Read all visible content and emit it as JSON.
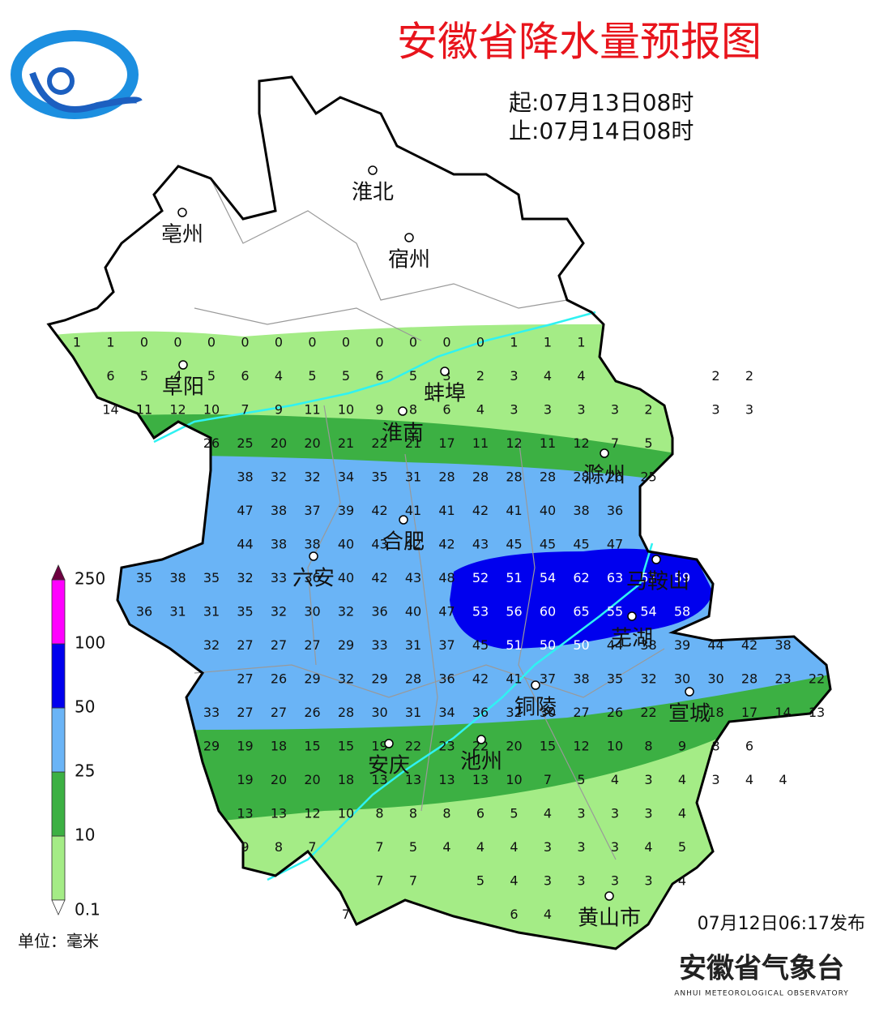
{
  "header": {
    "title": "安徽省降水量预报图",
    "start": "起:07月13日08时",
    "end": "止:07月14日08时"
  },
  "cities": [
    "淮北",
    "亳州",
    "宿州",
    "阜阳",
    "蚌埠",
    "淮南",
    "滁州",
    "合肥",
    "六安",
    "马鞍山",
    "芜湖",
    "铜陵",
    "宣城",
    "安庆",
    "池州",
    "黄山市"
  ],
  "grid": {
    "rows": [
      [
        1,
        1,
        0,
        0,
        0,
        0,
        0,
        0,
        0,
        0,
        0,
        0,
        0,
        1,
        1,
        1,
        null,
        null,
        null,
        null,
        null,
        null,
        null
      ],
      [
        null,
        6,
        5,
        4,
        5,
        6,
        4,
        5,
        5,
        6,
        5,
        3,
        2,
        3,
        4,
        4,
        null,
        null,
        null,
        2,
        2,
        null,
        null
      ],
      [
        null,
        14,
        11,
        12,
        10,
        7,
        9,
        11,
        10,
        9,
        8,
        6,
        4,
        3,
        3,
        3,
        3,
        2,
        null,
        3,
        3,
        null,
        null
      ],
      [
        null,
        null,
        null,
        null,
        26,
        25,
        20,
        20,
        21,
        22,
        21,
        17,
        11,
        12,
        11,
        12,
        7,
        5,
        null,
        null,
        null,
        null,
        null
      ],
      [
        null,
        null,
        null,
        null,
        null,
        38,
        32,
        32,
        34,
        35,
        31,
        28,
        28,
        28,
        28,
        28,
        26,
        25,
        null,
        null,
        null,
        null,
        null
      ],
      [
        null,
        null,
        null,
        null,
        null,
        47,
        38,
        37,
        39,
        42,
        41,
        41,
        42,
        41,
        40,
        38,
        36,
        null,
        null,
        null,
        null,
        null,
        null
      ],
      [
        null,
        null,
        null,
        null,
        null,
        44,
        38,
        38,
        40,
        43,
        42,
        42,
        43,
        45,
        45,
        45,
        47,
        null,
        null,
        null,
        null,
        null,
        null
      ],
      [
        null,
        null,
        35,
        38,
        35,
        32,
        33,
        36,
        40,
        42,
        43,
        48,
        52,
        51,
        54,
        62,
        63,
        57,
        59,
        null,
        null,
        null,
        null
      ],
      [
        null,
        null,
        36,
        31,
        31,
        35,
        32,
        30,
        32,
        36,
        40,
        47,
        53,
        56,
        60,
        65,
        55,
        54,
        58,
        null,
        null,
        null,
        null
      ],
      [
        null,
        null,
        null,
        null,
        32,
        27,
        27,
        27,
        29,
        33,
        31,
        37,
        45,
        51,
        50,
        50,
        44,
        38,
        39,
        44,
        42,
        38,
        null
      ],
      [
        null,
        null,
        null,
        null,
        null,
        27,
        26,
        29,
        32,
        29,
        28,
        36,
        42,
        41,
        37,
        38,
        35,
        32,
        30,
        30,
        28,
        23,
        22
      ],
      [
        null,
        null,
        null,
        null,
        33,
        27,
        27,
        26,
        28,
        30,
        31,
        34,
        36,
        32,
        30,
        27,
        26,
        22,
        null,
        18,
        17,
        14,
        13
      ],
      [
        null,
        null,
        null,
        null,
        29,
        19,
        18,
        15,
        15,
        19,
        22,
        23,
        22,
        20,
        15,
        12,
        10,
        8,
        9,
        8,
        6,
        null,
        null
      ],
      [
        null,
        null,
        null,
        null,
        null,
        19,
        20,
        20,
        18,
        13,
        13,
        13,
        13,
        10,
        7,
        5,
        4,
        3,
        4,
        3,
        4,
        4,
        null
      ],
      [
        null,
        null,
        null,
        null,
        null,
        13,
        13,
        12,
        10,
        8,
        8,
        8,
        6,
        5,
        4,
        3,
        3,
        3,
        4,
        null,
        null,
        null,
        null
      ],
      [
        null,
        null,
        null,
        null,
        null,
        9,
        8,
        7,
        null,
        7,
        5,
        4,
        4,
        4,
        3,
        3,
        3,
        4,
        5,
        null,
        null,
        null,
        null
      ],
      [
        null,
        null,
        null,
        null,
        null,
        null,
        null,
        null,
        null,
        7,
        7,
        null,
        5,
        4,
        3,
        3,
        3,
        3,
        4,
        null,
        null,
        null,
        null
      ],
      [
        null,
        null,
        null,
        null,
        null,
        null,
        null,
        null,
        7,
        null,
        null,
        null,
        null,
        6,
        4,
        null,
        null,
        null,
        null,
        null,
        null,
        null,
        null
      ]
    ]
  },
  "legend": {
    "levels": [
      0.1,
      10,
      25,
      50,
      100,
      250
    ],
    "colors": [
      "#a4ec86",
      "#3cb043",
      "#6ab4f6",
      "#0000ee",
      "#ff00ff",
      "#6e0040"
    ],
    "unit": "单位：毫米"
  },
  "footer": {
    "issued": "07月12日06:17发布",
    "org": "安徽省气象台",
    "org_en": "ANHUI METEOROLOGICAL OBSERVATORY"
  }
}
